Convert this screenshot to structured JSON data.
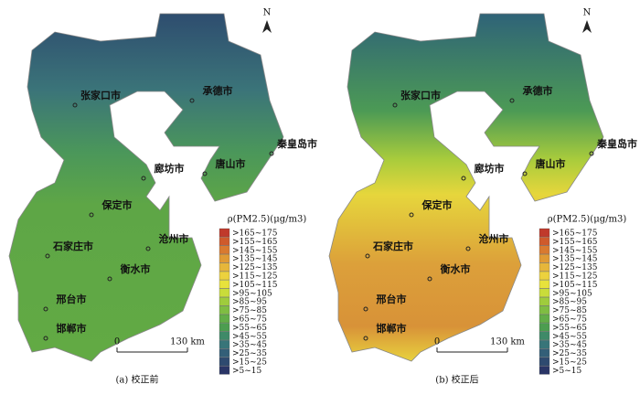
{
  "panels": [
    {
      "caption": "(a)  校正前",
      "north": "N",
      "cities": [
        "张家口市",
        "承德市",
        "秦皇岛市",
        "唐山市",
        "廊坊市",
        "保定市",
        "沧州市",
        "石家庄市",
        "衡水市",
        "邢台市",
        "邯郸市"
      ],
      "scale": {
        "start": "0",
        "label": "130 km"
      },
      "legend": {
        "title": "ρ(PM2.5)(μg/m3)",
        "items": [
          ">165~175",
          ">155~165",
          ">145~155",
          ">135~145",
          ">125~135",
          ">115~125",
          ">105~115",
          ">95~105",
          ">85~95",
          ">75~85",
          ">65~75",
          ">55~65",
          ">45~55",
          ">35~45",
          ">25~35",
          ">15~25",
          ">5~15"
        ]
      }
    },
    {
      "caption": "(b)  校正后",
      "north": "N",
      "cities": [
        "张家口市",
        "承德市",
        "秦皇岛市",
        "唐山市",
        "廊坊市",
        "保定市",
        "沧州市",
        "石家庄市",
        "衡水市",
        "邢台市",
        "邯郸市"
      ],
      "scale": {
        "start": "0",
        "label": "130 km"
      },
      "legend": {
        "title": "ρ(PM2.5)(μg/m3)",
        "items": [
          ">165~175",
          ">155~165",
          ">145~155",
          ">135~145",
          ">125~135",
          ">115~125",
          ">105~115",
          ">95~105",
          ">85~95",
          ">75~85",
          ">65~75",
          ">55~65",
          ">45~55",
          ">35~45",
          ">25~35",
          ">15~25",
          ">5~15"
        ]
      }
    }
  ],
  "legend_colors": [
    "#c0392b",
    "#cf5a2c",
    "#d97a30",
    "#e09a34",
    "#e6b63a",
    "#ecd23e",
    "#e8e23c",
    "#c9dc3a",
    "#9fcc3c",
    "#7fbd42",
    "#62ad48",
    "#4c9d50",
    "#3f8a68",
    "#387579",
    "#335f78",
    "#2e4a70",
    "#2a3566"
  ]
}
